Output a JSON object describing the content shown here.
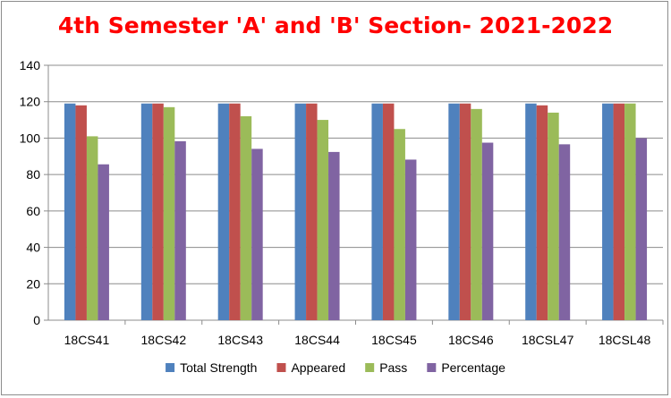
{
  "chart_data": {
    "type": "bar",
    "title": "4th Semester 'A' and 'B' Section- 2021-2022",
    "xlabel": "",
    "ylabel": "",
    "ylim": [
      0,
      140
    ],
    "yticks": [
      0,
      20,
      40,
      60,
      80,
      100,
      120,
      140
    ],
    "grid": true,
    "legend_position": "bottom",
    "categories": [
      "18CS41",
      "18CS42",
      "18CS43",
      "18CS44",
      "18CS45",
      "18CS46",
      "18CSL47",
      "18CSL48"
    ],
    "series": [
      {
        "name": "Total Strength",
        "color": "#4f81bd",
        "values": [
          119,
          119,
          119,
          119,
          119,
          119,
          119,
          119
        ]
      },
      {
        "name": "Appeared",
        "color": "#c0504d",
        "values": [
          118,
          119,
          119,
          119,
          119,
          119,
          118,
          119
        ]
      },
      {
        "name": "Pass",
        "color": "#9bbb59",
        "values": [
          101,
          117,
          112,
          110,
          105,
          116,
          114,
          119
        ]
      },
      {
        "name": "Percentage",
        "color": "#8064a2",
        "values": [
          85.6,
          98.3,
          94.1,
          92.4,
          88.2,
          97.5,
          96.6,
          100
        ]
      }
    ]
  }
}
